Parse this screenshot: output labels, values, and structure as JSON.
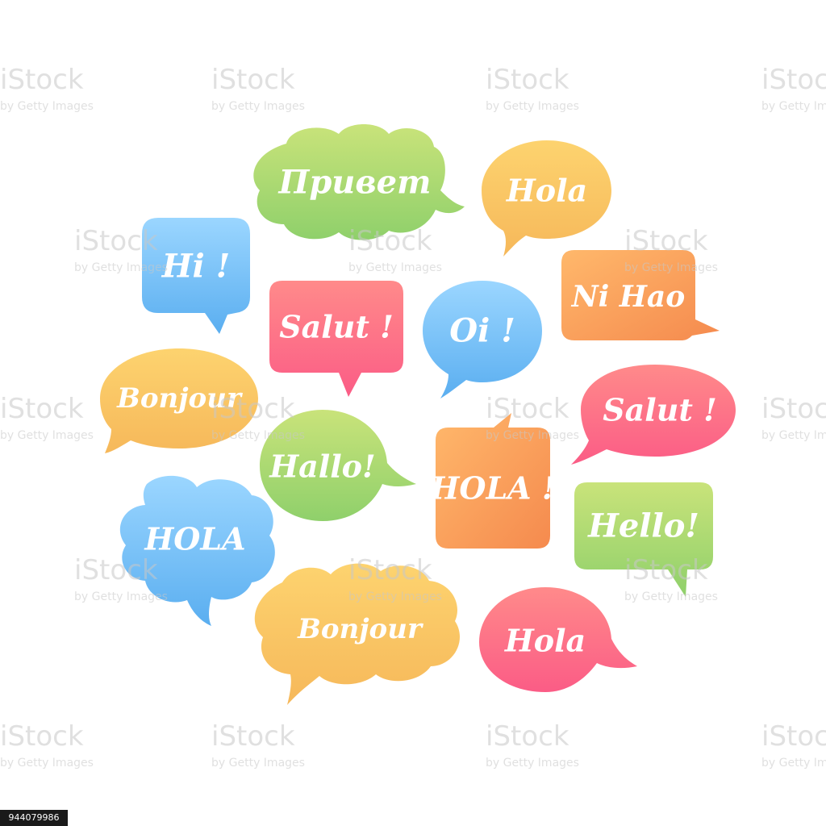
{
  "colors": {
    "green": [
      "#c9e37a",
      "#8fd06b"
    ],
    "yellow": [
      "#fdd36f",
      "#f6b85a"
    ],
    "blue": [
      "#9bd6ff",
      "#5aaef0"
    ],
    "pink": [
      "#ff8a8a",
      "#fb5c86"
    ],
    "orange": [
      "#ffb86b",
      "#f58a4e"
    ]
  },
  "bubbles": [
    {
      "label": "Привет",
      "color": "green"
    },
    {
      "label": "Hola",
      "color": "yellow"
    },
    {
      "label": "Hi !",
      "color": "blue"
    },
    {
      "label": "Ni Hao",
      "color": "orange"
    },
    {
      "label": "Salut !",
      "color": "pink"
    },
    {
      "label": "Oi !",
      "color": "blue"
    },
    {
      "label": "Bonjour",
      "color": "yellow"
    },
    {
      "label": "Salut !",
      "color": "pink"
    },
    {
      "label": "Hallo!",
      "color": "green"
    },
    {
      "label": "HOLA !",
      "color": "orange"
    },
    {
      "label": "HOLA",
      "color": "blue"
    },
    {
      "label": "Hello!",
      "color": "green"
    },
    {
      "label": "Bonjour",
      "color": "yellow"
    },
    {
      "label": "Hola",
      "color": "pink"
    }
  ],
  "watermark": {
    "brand": "iStock",
    "byline": "by Getty Images"
  },
  "stock_id": "944079986"
}
